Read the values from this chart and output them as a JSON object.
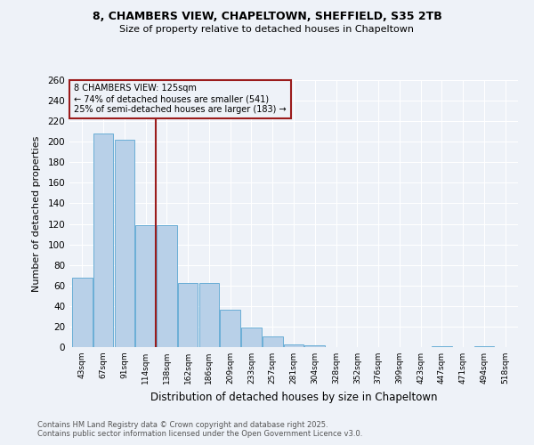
{
  "title1": "8, CHAMBERS VIEW, CHAPELTOWN, SHEFFIELD, S35 2TB",
  "title2": "Size of property relative to detached houses in Chapeltown",
  "xlabel": "Distribution of detached houses by size in Chapeltown",
  "ylabel": "Number of detached properties",
  "categories": [
    "43sqm",
    "67sqm",
    "91sqm",
    "114sqm",
    "138sqm",
    "162sqm",
    "186sqm",
    "209sqm",
    "233sqm",
    "257sqm",
    "281sqm",
    "304sqm",
    "328sqm",
    "352sqm",
    "376sqm",
    "399sqm",
    "423sqm",
    "447sqm",
    "471sqm",
    "494sqm",
    "518sqm"
  ],
  "values": [
    68,
    208,
    202,
    119,
    119,
    62,
    62,
    36,
    19,
    10,
    3,
    2,
    0,
    0,
    0,
    0,
    0,
    1,
    0,
    1,
    0
  ],
  "bar_color": "#b8d0e8",
  "bar_edge_color": "#6aaed6",
  "property_line_x": 3.5,
  "annotation_title": "8 CHAMBERS VIEW: 125sqm",
  "annotation_line1": "← 74% of detached houses are smaller (541)",
  "annotation_line2": "25% of semi-detached houses are larger (183) →",
  "vline_color": "#9b1c1c",
  "ylim": [
    0,
    260
  ],
  "yticks": [
    0,
    20,
    40,
    60,
    80,
    100,
    120,
    140,
    160,
    180,
    200,
    220,
    240,
    260
  ],
  "footer1": "Contains HM Land Registry data © Crown copyright and database right 2025.",
  "footer2": "Contains public sector information licensed under the Open Government Licence v3.0.",
  "bg_color": "#eef2f8"
}
